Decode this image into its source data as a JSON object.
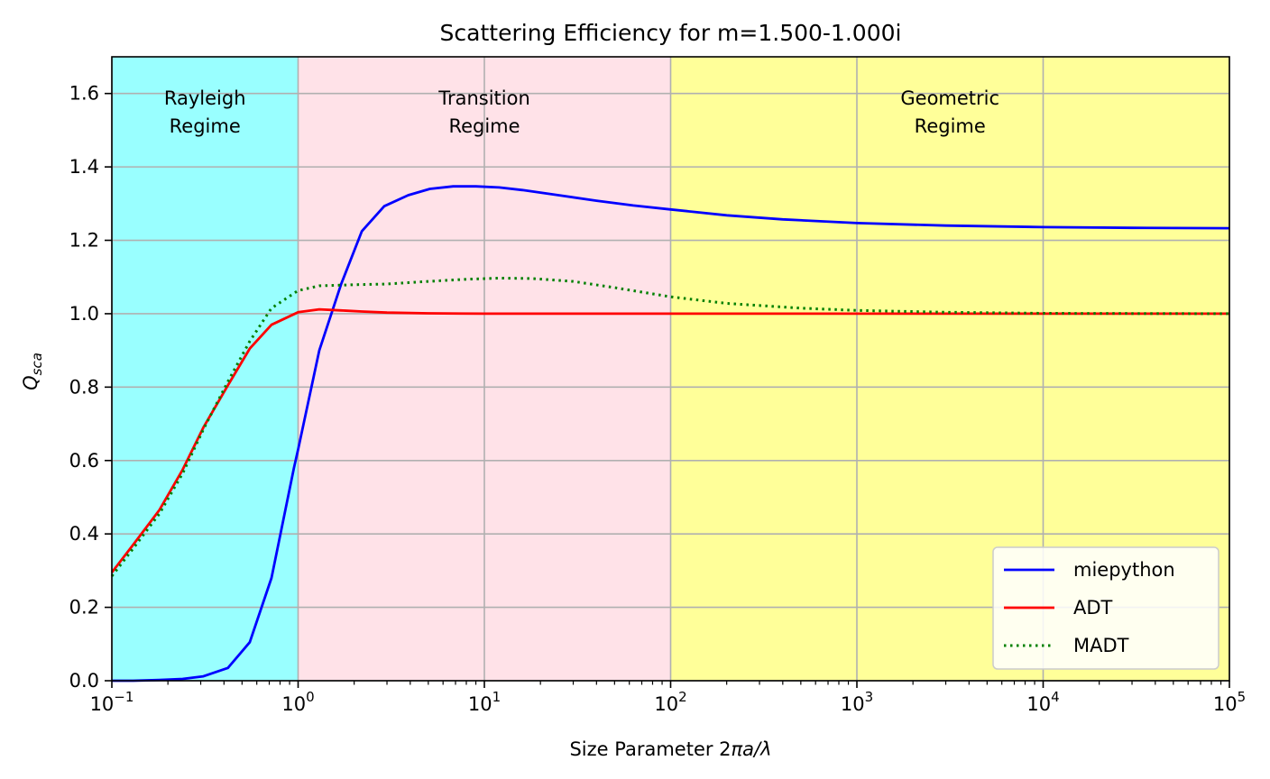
{
  "chart_data": {
    "type": "line",
    "title": "Scattering Efficiency for m=1.500-1.000i",
    "xlabel": {
      "prefix": "Size Parameter 2",
      "math": "πa/λ"
    },
    "ylabel": {
      "main": "Q",
      "sub": "sca"
    },
    "xscale": "log",
    "xlim": [
      0.1,
      100000
    ],
    "ylim": [
      0,
      1.7
    ],
    "grid": true,
    "legend_position": "lower right",
    "x_ticks": [
      {
        "value": 0.1,
        "base": "10",
        "exp": "−1"
      },
      {
        "value": 1,
        "base": "10",
        "exp": "0"
      },
      {
        "value": 10,
        "base": "10",
        "exp": "1"
      },
      {
        "value": 100,
        "base": "10",
        "exp": "2"
      },
      {
        "value": 1000,
        "base": "10",
        "exp": "3"
      },
      {
        "value": 10000,
        "base": "10",
        "exp": "4"
      },
      {
        "value": 100000,
        "base": "10",
        "exp": "5"
      }
    ],
    "y_ticks": [
      {
        "value": 0.0,
        "label": "0.0"
      },
      {
        "value": 0.2,
        "label": "0.2"
      },
      {
        "value": 0.4,
        "label": "0.4"
      },
      {
        "value": 0.6,
        "label": "0.6"
      },
      {
        "value": 0.8,
        "label": "0.8"
      },
      {
        "value": 1.0,
        "label": "1.0"
      },
      {
        "value": 1.2,
        "label": "1.2"
      },
      {
        "value": 1.4,
        "label": "1.4"
      },
      {
        "value": 1.6,
        "label": "1.6"
      }
    ],
    "regions": [
      {
        "name": "rayleigh",
        "x_range": [
          0.1,
          1
        ],
        "color": "#99ffff",
        "lines": [
          "Rayleigh",
          "Regime"
        ],
        "label_x": 0.316,
        "label_y": 1.55
      },
      {
        "name": "transition",
        "x_range": [
          1,
          100
        ],
        "color": "#ffe2e8",
        "lines": [
          "Transition",
          "Regime"
        ],
        "label_x": 10,
        "label_y": 1.55
      },
      {
        "name": "geometric",
        "x_range": [
          100,
          100000
        ],
        "color": "#ffff99",
        "lines": [
          "Geometric",
          "Regime"
        ],
        "label_x": 3162,
        "label_y": 1.55
      }
    ],
    "series": [
      {
        "name": "miepython",
        "color": "#0000ff",
        "style": "solid",
        "points": [
          [
            0.1,
            0.0
          ],
          [
            0.13,
            0.0
          ],
          [
            0.18,
            0.002
          ],
          [
            0.24,
            0.005
          ],
          [
            0.31,
            0.012
          ],
          [
            0.42,
            0.035
          ],
          [
            0.55,
            0.105
          ],
          [
            0.72,
            0.28
          ],
          [
            0.95,
            0.58
          ],
          [
            1.0,
            0.63
          ],
          [
            1.3,
            0.9
          ],
          [
            1.7,
            1.08
          ],
          [
            2.2,
            1.225
          ],
          [
            2.9,
            1.293
          ],
          [
            3.9,
            1.323
          ],
          [
            5.1,
            1.34
          ],
          [
            6.8,
            1.347
          ],
          [
            9.0,
            1.347
          ],
          [
            12,
            1.344
          ],
          [
            16,
            1.337
          ],
          [
            25,
            1.323
          ],
          [
            40,
            1.308
          ],
          [
            63,
            1.295
          ],
          [
            100,
            1.284
          ],
          [
            200,
            1.268
          ],
          [
            400,
            1.257
          ],
          [
            1000,
            1.247
          ],
          [
            3000,
            1.24
          ],
          [
            10000,
            1.236
          ],
          [
            30000,
            1.234
          ],
          [
            100000,
            1.233
          ]
        ]
      },
      {
        "name": "ADT",
        "color": "#ff0000",
        "style": "solid",
        "points": [
          [
            0.1,
            0.295
          ],
          [
            0.13,
            0.37
          ],
          [
            0.18,
            0.465
          ],
          [
            0.24,
            0.575
          ],
          [
            0.31,
            0.69
          ],
          [
            0.42,
            0.805
          ],
          [
            0.55,
            0.905
          ],
          [
            0.72,
            0.97
          ],
          [
            1.0,
            1.004
          ],
          [
            1.3,
            1.012
          ],
          [
            1.7,
            1.009
          ],
          [
            2.2,
            1.006
          ],
          [
            3.0,
            1.003
          ],
          [
            5.0,
            1.001
          ],
          [
            10,
            1.0
          ],
          [
            100,
            1.0
          ],
          [
            1000,
            1.0
          ],
          [
            100000,
            1.0
          ]
        ]
      },
      {
        "name": "MADT",
        "color": "#008000",
        "style": "dotted",
        "points": [
          [
            0.1,
            0.285
          ],
          [
            0.13,
            0.36
          ],
          [
            0.18,
            0.455
          ],
          [
            0.24,
            0.565
          ],
          [
            0.31,
            0.685
          ],
          [
            0.42,
            0.815
          ],
          [
            0.55,
            0.925
          ],
          [
            0.72,
            1.015
          ],
          [
            1.0,
            1.063
          ],
          [
            1.3,
            1.076
          ],
          [
            2.0,
            1.079
          ],
          [
            3.0,
            1.081
          ],
          [
            5.0,
            1.088
          ],
          [
            8.0,
            1.094
          ],
          [
            12,
            1.097
          ],
          [
            18,
            1.096
          ],
          [
            30,
            1.088
          ],
          [
            50,
            1.071
          ],
          [
            100,
            1.046
          ],
          [
            200,
            1.028
          ],
          [
            500,
            1.015
          ],
          [
            1000,
            1.009
          ],
          [
            3000,
            1.004
          ],
          [
            10000,
            1.001
          ],
          [
            100000,
            1.0
          ]
        ]
      }
    ]
  }
}
